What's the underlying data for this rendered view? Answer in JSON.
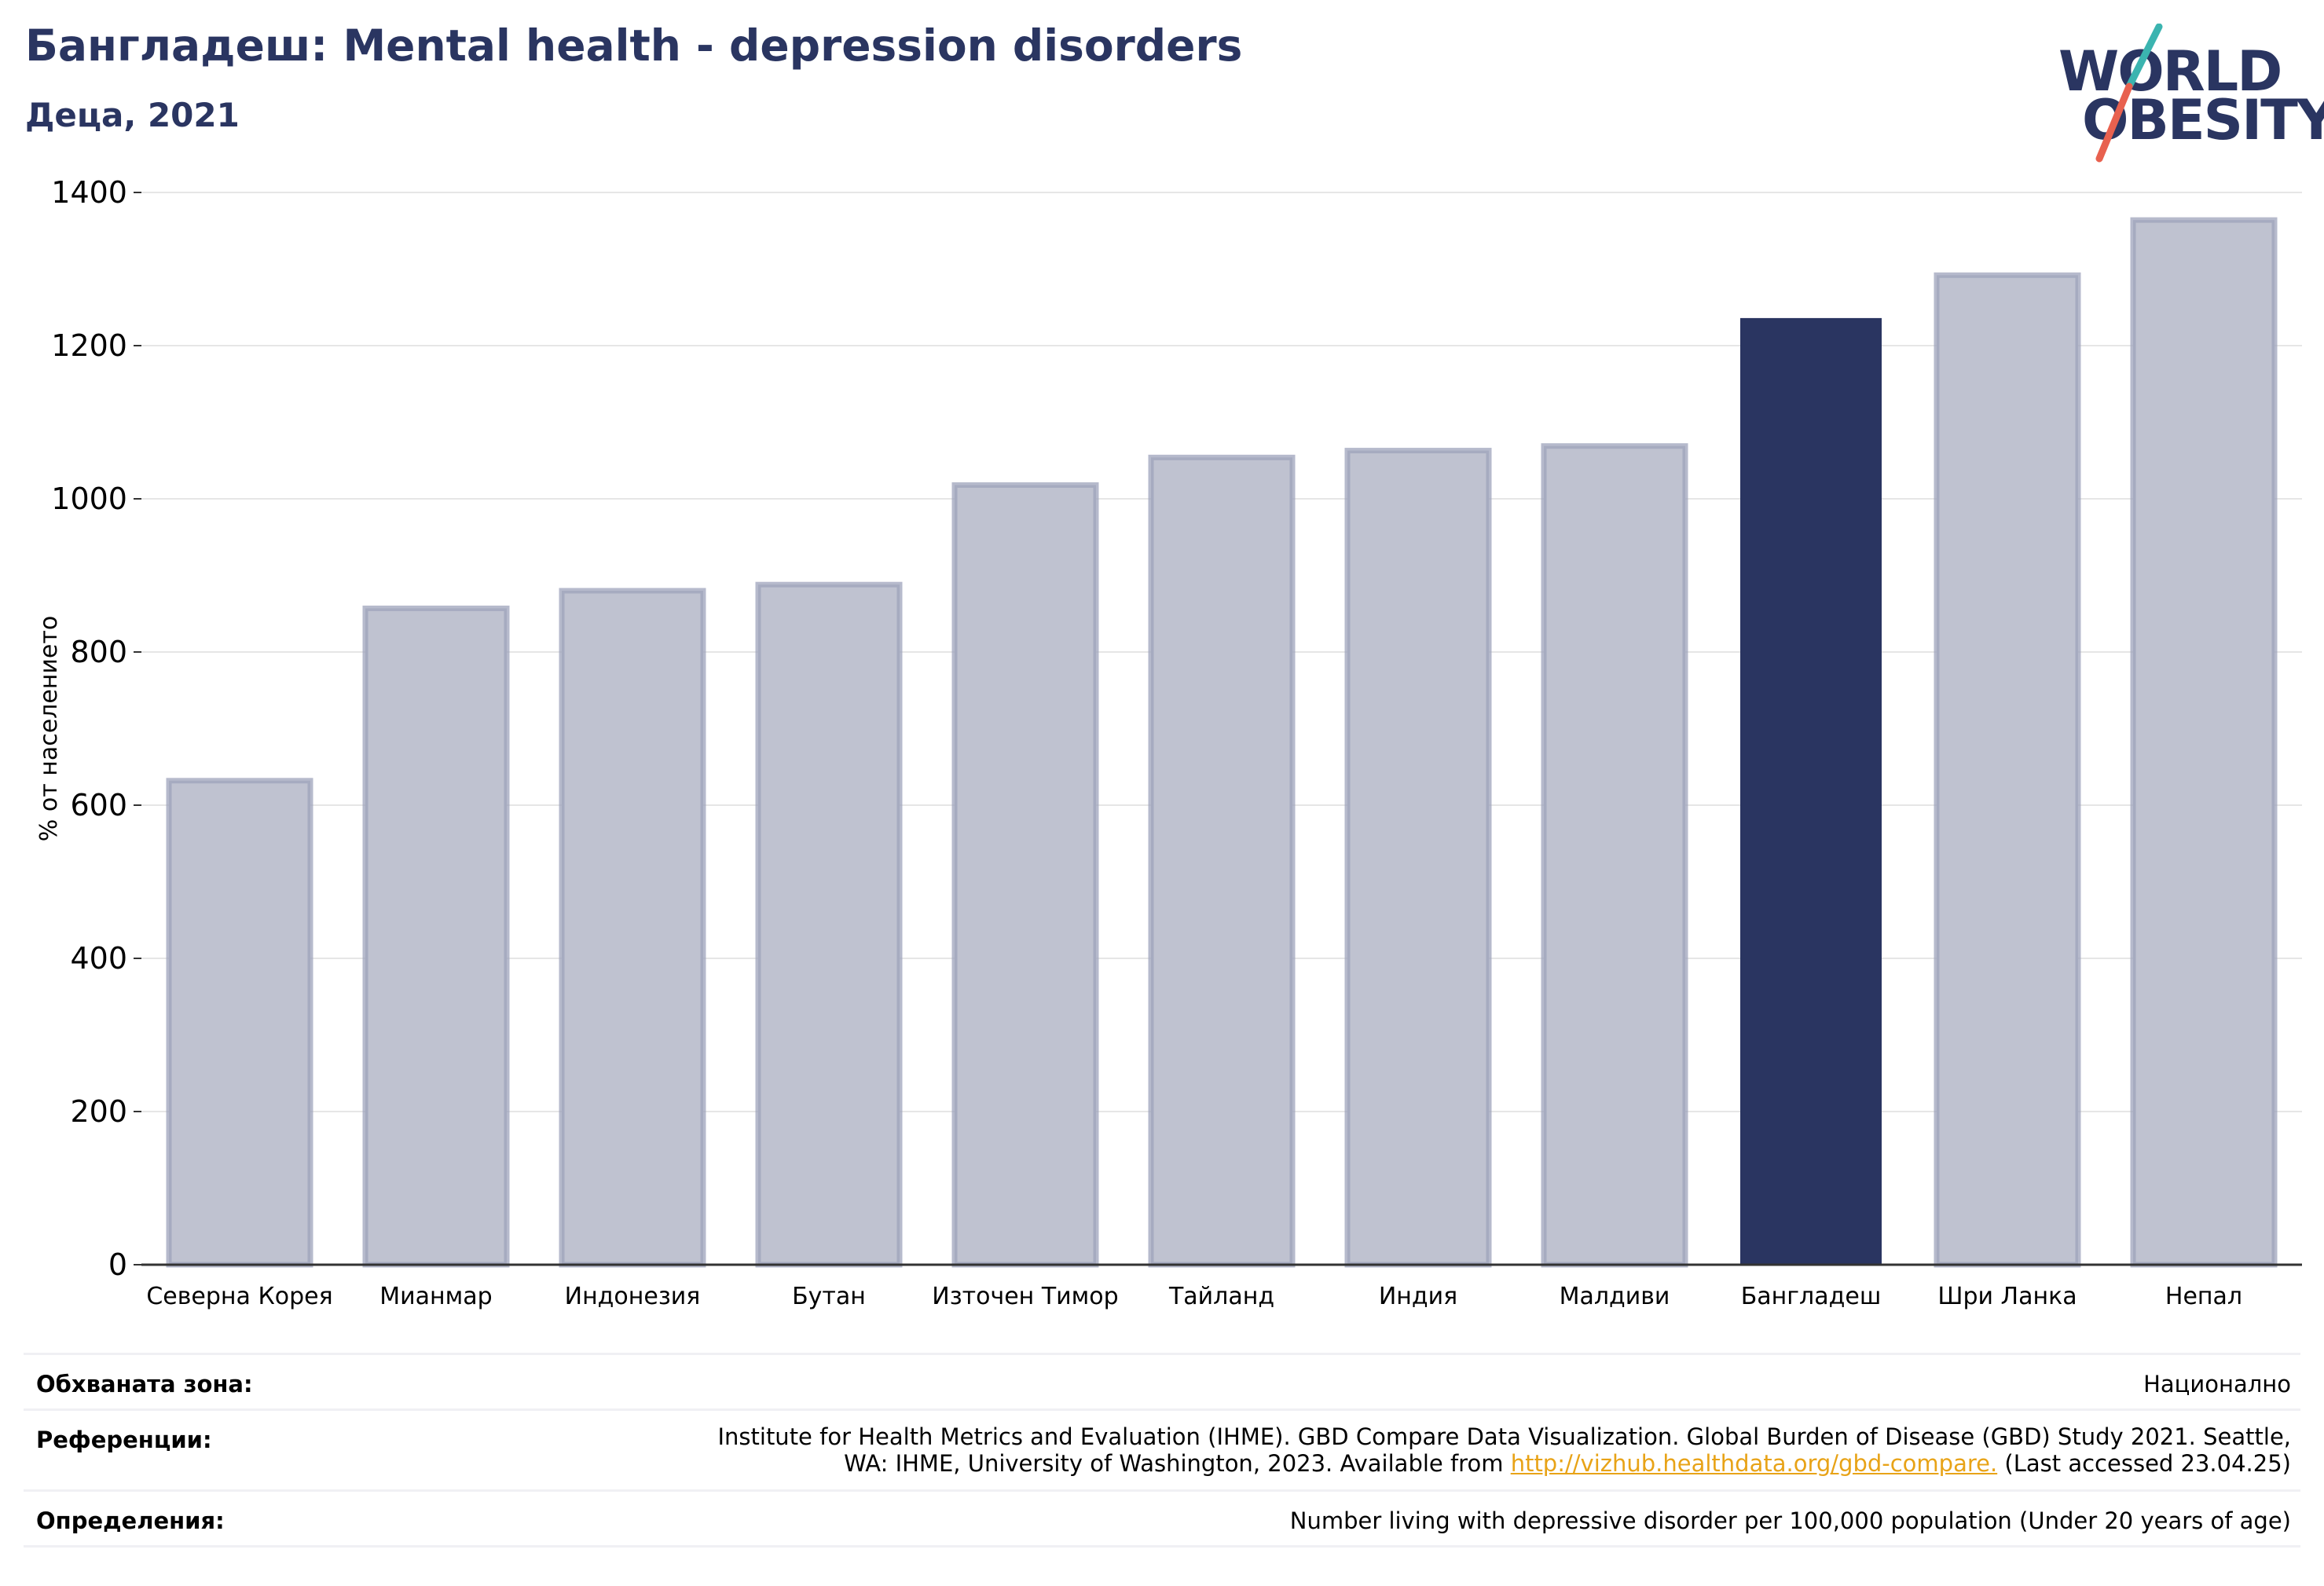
{
  "title": "Бангладеш: Mental health - depression disorders",
  "subtitle": "Деца, 2021",
  "logo": {
    "line1": "WORLD",
    "line2": "OBESITY"
  },
  "chart_data": {
    "type": "bar",
    "ylabel": "% от населението",
    "ylim": [
      0,
      1400
    ],
    "yticks": [
      0,
      200,
      400,
      600,
      800,
      1000,
      1200,
      1400
    ],
    "grid": true,
    "categories": [
      "Северна Корея",
      "Мианмар",
      "Индонезия",
      "Бутан",
      "Източен Тимор",
      "Тайланд",
      "Индия",
      "Малдиви",
      "Бангладеш",
      "Шри Ланка",
      "Непал"
    ],
    "values": [
      632,
      857,
      880,
      888,
      1018,
      1054,
      1063,
      1069,
      1236,
      1292,
      1364
    ],
    "highlight": "Бангладеш",
    "colors": {
      "bar": "#bfc2d0",
      "bar_edge": "#9ea3bb",
      "highlight": "#2a3561",
      "axis": "#333333",
      "grid": "#e6e6e6"
    }
  },
  "info": {
    "coverage_label": "Обхваната зона:",
    "coverage_value": "Национално",
    "references_label": "Референции:",
    "references_line1": "Institute for Health Metrics and Evaluation (IHME). GBD Compare Data Visualization. Global Burden of Disease (GBD) Study 2021. Seattle,",
    "references_line2_pre": "WA: IHME, University of Washington, 2023. Available from ",
    "references_link": "http://vizhub.healthdata.org/gbd-compare.",
    "references_line2_post": " (Last accessed 23.04.25)",
    "definitions_label": "Определения:",
    "definitions_value": "Number living with depressive disorder per 100,000 population (Under 20 years of age)"
  }
}
